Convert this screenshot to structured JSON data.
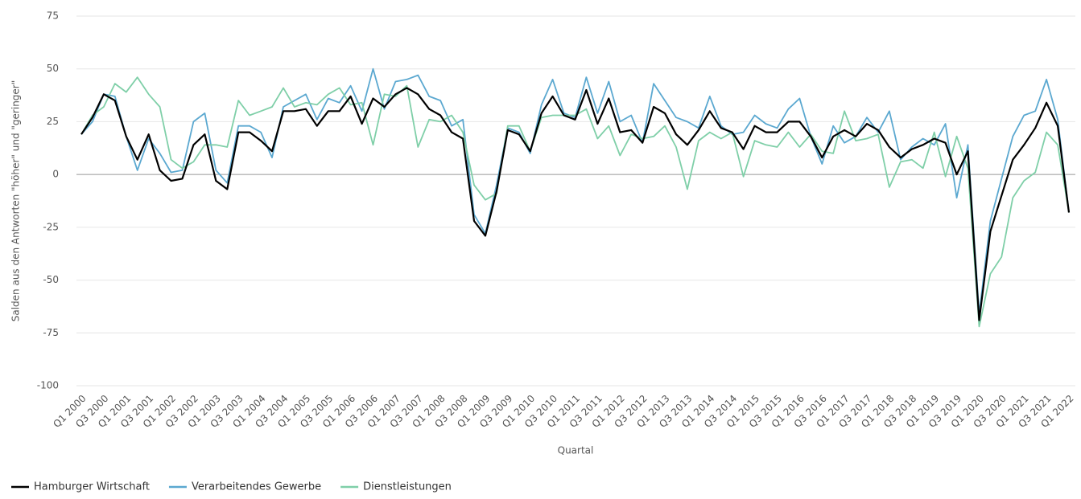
{
  "chart_data": {
    "type": "line",
    "y_label": "Salden aus den Antworten \"höher\" und \"geringer\"",
    "x_label": "Quartal",
    "categories": [
      "Q1 2000",
      null,
      "Q3 2000",
      null,
      "Q1 2001",
      null,
      "Q3 2001",
      null,
      "Q1 2002",
      null,
      "Q3 2002",
      null,
      "Q1 2003",
      null,
      "Q3 2003",
      null,
      "Q1 2004",
      null,
      "Q3 2004",
      null,
      "Q1 2005",
      null,
      "Q3 2005",
      null,
      "Q1 2006",
      null,
      "Q3 2006",
      null,
      "Q1 2007",
      null,
      "Q3 2007",
      null,
      "Q1 2008",
      null,
      "Q3 2008",
      null,
      "Q1 2009",
      null,
      "Q3 2009",
      null,
      "Q1 2010",
      null,
      "Q3 2010",
      null,
      "Q1 2011",
      null,
      "Q3 2011",
      null,
      "Q1 2012",
      null,
      "Q3 2012",
      null,
      "Q1 2013",
      null,
      "Q3 2013",
      null,
      "Q1 2014",
      null,
      "Q3 2014",
      null,
      "Q1 2015",
      null,
      "Q3 2015",
      null,
      "Q1 2016",
      null,
      "Q3 2016",
      null,
      "Q1 2017",
      null,
      "Q3 2017",
      null,
      "Q1 2018",
      null,
      "Q3 2018",
      null,
      "Q1 2019",
      null,
      "Q3 2019",
      null,
      "Q1 2020",
      null,
      "Q3 2020",
      null,
      "Q1 2021",
      null,
      "Q3 2021",
      null,
      "Q1 2022"
    ],
    "series": [
      {
        "name": "Hamburger Wirtschaft",
        "color": "#000000",
        "values": [
          19,
          27,
          38,
          35,
          18,
          7,
          19,
          2,
          -3,
          -2,
          14,
          19,
          -3,
          -7,
          20,
          20,
          16,
          11,
          30,
          30,
          31,
          23,
          30,
          30,
          37,
          24,
          36,
          32,
          38,
          41,
          38,
          31,
          28,
          20,
          17,
          -22,
          -29,
          -8,
          21,
          19,
          11,
          29,
          37,
          28,
          26,
          40,
          24,
          36,
          20,
          21,
          15,
          32,
          29,
          19,
          14,
          21,
          30,
          22,
          20,
          12,
          23,
          20,
          20,
          25,
          25,
          18,
          8,
          18,
          21,
          18,
          24,
          21,
          13,
          8,
          12,
          14,
          17,
          15,
          0,
          11,
          -69,
          -27,
          -10,
          7,
          14,
          22,
          34,
          23,
          -18
        ]
      },
      {
        "name": "Verarbeitendes Gewerbe",
        "color": "#5ba8d0",
        "values": [
          19,
          25,
          38,
          37,
          18,
          2,
          17,
          10,
          1,
          2,
          25,
          29,
          2,
          -4,
          23,
          23,
          20,
          8,
          32,
          35,
          38,
          26,
          36,
          34,
          42,
          30,
          50,
          31,
          44,
          45,
          47,
          37,
          35,
          23,
          26,
          -19,
          -28,
          -5,
          22,
          20,
          10,
          33,
          45,
          29,
          27,
          46,
          29,
          44,
          25,
          28,
          15,
          43,
          35,
          27,
          25,
          22,
          37,
          23,
          19,
          20,
          28,
          24,
          22,
          31,
          36,
          18,
          5,
          23,
          15,
          18,
          27,
          20,
          30,
          7,
          13,
          17,
          14,
          24,
          -11,
          14,
          -66,
          -22,
          -2,
          18,
          28,
          30,
          45,
          26,
          -18
        ]
      },
      {
        "name": "Dienstleistungen",
        "color": "#7fcfa8",
        "values": [
          19,
          28,
          32,
          43,
          39,
          46,
          38,
          32,
          7,
          3,
          6,
          14,
          14,
          13,
          35,
          28,
          30,
          32,
          41,
          32,
          34,
          33,
          38,
          41,
          33,
          34,
          14,
          38,
          37,
          42,
          13,
          26,
          25,
          28,
          20,
          -5,
          -12,
          -9,
          23,
          23,
          11,
          27,
          28,
          28,
          28,
          31,
          17,
          23,
          9,
          19,
          17,
          18,
          23,
          13,
          -7,
          16,
          20,
          17,
          20,
          -1,
          16,
          14,
          13,
          20,
          13,
          19,
          11,
          10,
          30,
          16,
          17,
          19,
          -6,
          6,
          7,
          3,
          20,
          -1,
          18,
          3,
          -72,
          -47,
          -39,
          -11,
          -3,
          1,
          20,
          14,
          -18
        ]
      }
    ],
    "ylim": [
      -100,
      75
    ],
    "yticks": [
      -100,
      -75,
      -50,
      -25,
      0,
      25,
      50,
      75
    ],
    "grid": true
  }
}
